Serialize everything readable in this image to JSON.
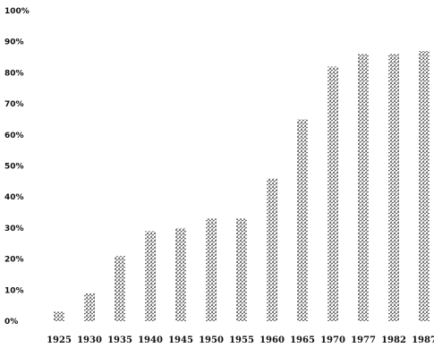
{
  "chart_data": {
    "type": "bar",
    "title": "",
    "xlabel": "",
    "ylabel": "",
    "ylim": [
      0,
      100
    ],
    "yticks": [
      "0%",
      "10%",
      "20%",
      "30%",
      "40%",
      "50%",
      "60%",
      "70%",
      "80%",
      "90%",
      "100%"
    ],
    "categories": [
      "1925",
      "1930",
      "1935",
      "1940",
      "1945",
      "1950",
      "1955",
      "1960",
      "1965",
      "1970",
      "1977",
      "1982",
      "1987"
    ],
    "values": [
      3,
      9,
      21,
      29,
      30,
      33,
      33,
      46,
      65,
      82,
      86,
      86,
      87
    ],
    "grid": false,
    "bar_fill": "stippled",
    "color": "#222222"
  }
}
